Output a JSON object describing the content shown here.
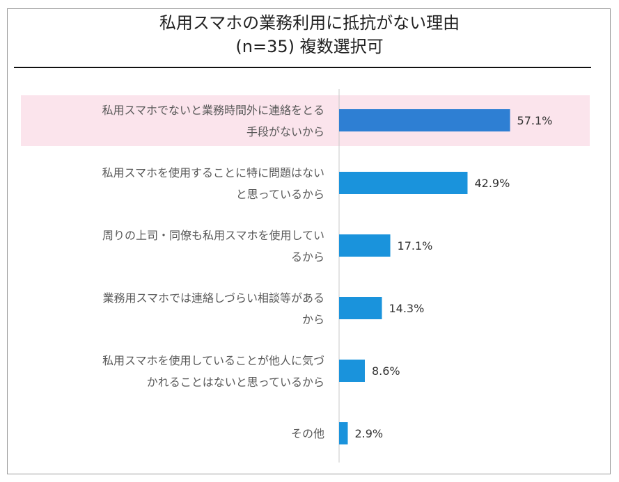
{
  "title_line1": "私用スマホの業務利用に抵抗がない理由",
  "title_line2": "(n=35) 複数選択可",
  "highlight_color": "#fbe4ec",
  "chart_data": {
    "type": "bar",
    "orientation": "horizontal",
    "title": "私用スマホの業務利用に抵抗がない理由 (n=35) 複数選択可",
    "unit": "%",
    "xlim": [
      0,
      100
    ],
    "grid": false,
    "highlighted_index": 0,
    "categories": [
      [
        "私用スマホでないと業務時間外に連絡をとる",
        "手段がないから"
      ],
      [
        "私用スマホを使用することに特に問題はない",
        "と思っているから"
      ],
      [
        "周りの上司・同僚も私用スマホを使用してい",
        "るから"
      ],
      [
        "業務用スマホでは連絡しづらい相談等がある",
        "から"
      ],
      [
        "私用スマホを使用していることが他人に気づ",
        "かれることはないと思っているから"
      ],
      [
        "その他"
      ]
    ],
    "values": [
      57.1,
      42.9,
      17.1,
      14.3,
      8.6,
      2.9
    ],
    "value_labels": [
      "57.1%",
      "42.9%",
      "17.1%",
      "14.3%",
      "8.6%",
      "2.9%"
    ],
    "bar_colors": [
      "#2e7fd3",
      "#1a93dc",
      "#1a93dc",
      "#1a93dc",
      "#1a93dc",
      "#1a93dc"
    ]
  }
}
